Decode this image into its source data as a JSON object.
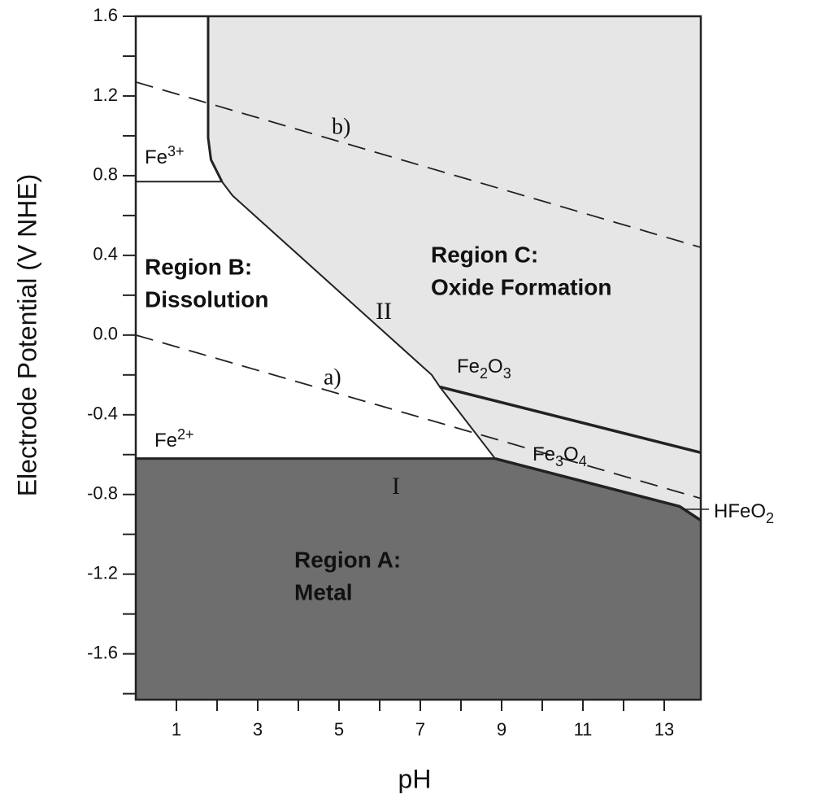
{
  "chart_data": {
    "type": "pourbaix",
    "x_label": "pH",
    "y_label": "Electrode Potential (V NHE)",
    "xlim": [
      0,
      13.9
    ],
    "ylim": [
      -1.83,
      1.6
    ],
    "xticks": [
      1,
      3,
      5,
      7,
      9,
      11,
      13
    ],
    "xminorticks": [
      2,
      4,
      6,
      8,
      10,
      12
    ],
    "yticks": [
      -1.6,
      -1.2,
      -0.8,
      -0.4,
      {
        "value": 0,
        "label": "0.0"
      },
      0.4,
      0.8,
      1.2,
      1.6
    ],
    "yminorticks": [
      -1.8,
      -1.4,
      -1.0,
      -0.6,
      -0.2,
      0.2,
      0.6,
      1.0,
      1.4
    ],
    "boundaries": [
      {
        "x": [
          0,
          2.12
        ],
        "values": [
          0.77,
          0.77
        ],
        "style": "solid"
      },
      {
        "x": [
          1.78,
          1.78,
          1.85,
          2.12
        ],
        "values": [
          1.6,
          0.99,
          0.88,
          0.77
        ],
        "style": "solid"
      },
      {
        "x": [
          2.12,
          2.38,
          7.28,
          7.48,
          8.84
        ],
        "values": [
          0.77,
          0.7,
          -0.2,
          -0.26,
          -0.62
        ],
        "style": "solid"
      },
      {
        "x": [
          7.48,
          13.9
        ],
        "values": [
          -0.26,
          -0.59
        ],
        "style": "solid"
      },
      {
        "x": [
          0,
          8.84
        ],
        "values": [
          -0.62,
          -0.62
        ],
        "style": "solid"
      },
      {
        "x": [
          8.84,
          13.38,
          13.9
        ],
        "values": [
          -0.62,
          -0.86,
          -0.93
        ],
        "style": "solid"
      },
      {
        "x": [
          0,
          13.9
        ],
        "values": [
          0,
          -0.82
        ],
        "style": "dashed"
      },
      {
        "x": [
          0,
          13.9
        ],
        "values": [
          1.27,
          0.44
        ],
        "style": "dashed"
      }
    ],
    "region_labels": [
      [
        "Region A:",
        "Metal"
      ],
      [
        "Region B:",
        "Dissolution"
      ],
      [
        "Region C:",
        "Oxide Formation"
      ]
    ],
    "species": [
      {
        "parts": [
          "Fe",
          "3+"
        ],
        "script": "sup"
      },
      {
        "parts": [
          "Fe",
          "2+"
        ],
        "script": "sup"
      },
      {
        "parts": [
          "Fe",
          "2",
          "O",
          "3"
        ],
        "script": "sub"
      },
      {
        "parts": [
          "Fe",
          "3",
          "O",
          "4"
        ],
        "script": "sub"
      },
      {
        "parts": [
          "HFeO",
          "2"
        ],
        "script": "sub"
      }
    ],
    "line_labels": [
      "I",
      "II",
      "a)",
      "b)"
    ]
  }
}
